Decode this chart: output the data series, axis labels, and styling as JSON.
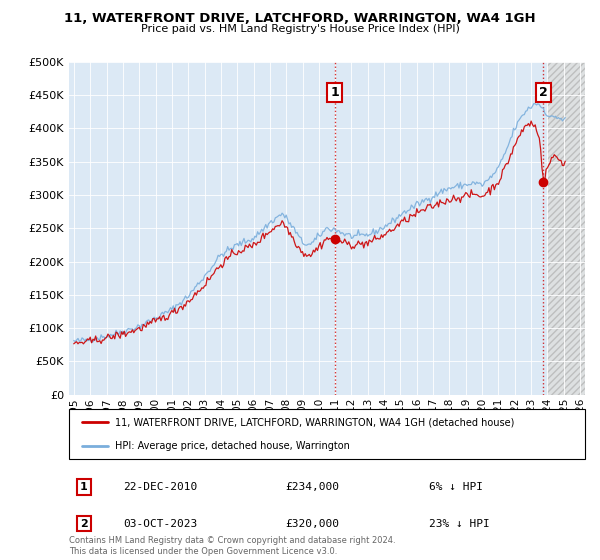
{
  "title": "11, WATERFRONT DRIVE, LATCHFORD, WARRINGTON, WA4 1GH",
  "subtitle": "Price paid vs. HM Land Registry's House Price Index (HPI)",
  "legend_label_red": "11, WATERFRONT DRIVE, LATCHFORD, WARRINGTON, WA4 1GH (detached house)",
  "legend_label_blue": "HPI: Average price, detached house, Warrington",
  "annotation1_date": "22-DEC-2010",
  "annotation1_price": "£234,000",
  "annotation1_hpi": "6% ↓ HPI",
  "annotation2_date": "03-OCT-2023",
  "annotation2_price": "£320,000",
  "annotation2_hpi": "23% ↓ HPI",
  "footer": "Contains HM Land Registry data © Crown copyright and database right 2024.\nThis data is licensed under the Open Government Licence v3.0.",
  "red_color": "#cc0000",
  "blue_color": "#7aaedc",
  "chart_bg": "#dce9f5",
  "hatch_bg": "#e8e8e8",
  "annotation_box_color": "#cc0000",
  "ylim": [
    0,
    500000
  ],
  "yticks": [
    0,
    50000,
    100000,
    150000,
    200000,
    250000,
    300000,
    350000,
    400000,
    450000,
    500000
  ],
  "xlim": [
    1994.7,
    2026.3
  ],
  "sale1_x": 2010.97,
  "sale1_y": 234000,
  "sale2_x": 2023.75,
  "sale2_y": 320000,
  "hatch_start": 2024.0
}
